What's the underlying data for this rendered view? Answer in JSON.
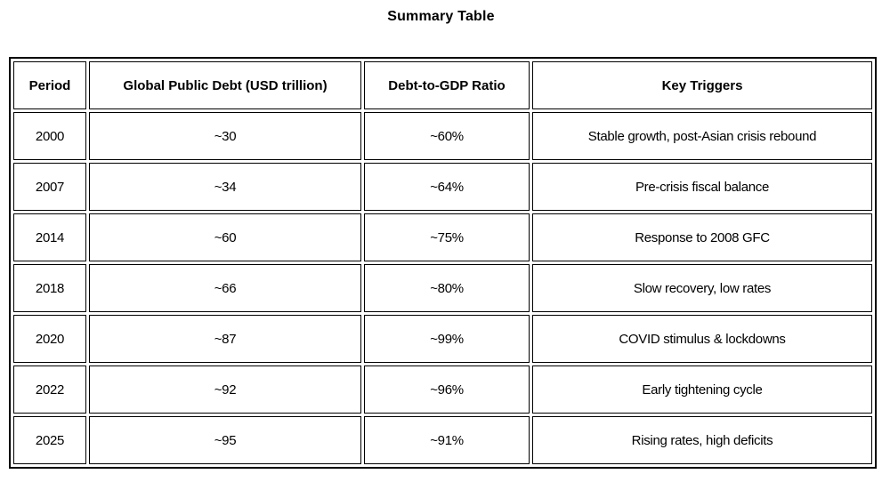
{
  "title": "Summary Table",
  "table": {
    "headers": [
      "Period",
      "Global Public Debt (USD trillion)",
      "Debt-to-GDP Ratio",
      "Key Triggers"
    ],
    "rows": [
      [
        "2000",
        "~30",
        "~60%",
        "Stable growth, post-Asian crisis rebound"
      ],
      [
        "2007",
        "~34",
        "~64%",
        "Pre-crisis fiscal balance"
      ],
      [
        "2014",
        "~60",
        "~75%",
        "Response to 2008 GFC"
      ],
      [
        "2018",
        "~66",
        "~80%",
        "Slow recovery, low rates"
      ],
      [
        "2020",
        "~87",
        "~99%",
        "COVID stimulus & lockdowns"
      ],
      [
        "2022",
        "~92",
        "~96%",
        "Early tightening cycle"
      ],
      [
        "2025",
        "~95",
        "~91%",
        "Rising rates, high deficits"
      ]
    ]
  },
  "colors": {
    "border": "#000000",
    "background": "#ffffff",
    "text": "#000000"
  }
}
